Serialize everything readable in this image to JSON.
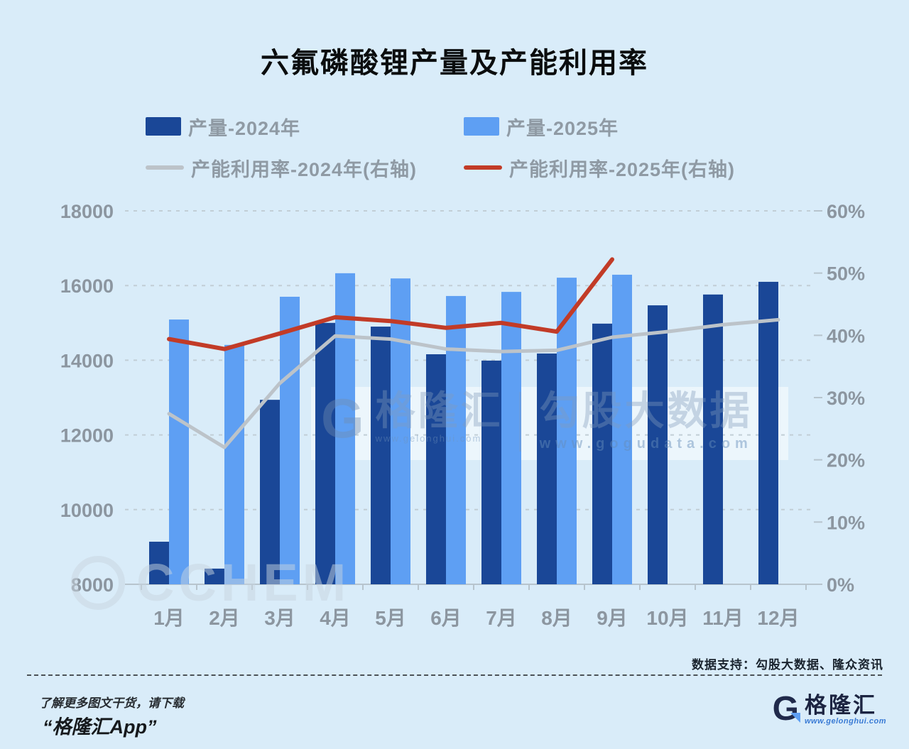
{
  "page": {
    "bg": "#d9ecf9",
    "title": "六氟磷酸锂产量及产能利用率",
    "source_note": "数据支持：勾股大数据、隆众资讯",
    "footer": {
      "line1": "了解更多图文干货，请下载",
      "line2": "“格隆汇App”",
      "logo_letter": "G",
      "brand": "格隆汇",
      "brand_url": "www.gelonghui.com"
    },
    "watermark": {
      "logo_letter": "G",
      "brand": "格隆汇",
      "brand_url": "www.gelonghui.com",
      "data_brand": "勾股大数据",
      "data_url": "www.gogudata.com",
      "corner": "CCHEM"
    }
  },
  "chart_data": {
    "type": "bar+line",
    "title": "六氟磷酸锂产量及产能利用率",
    "categories": [
      "1月",
      "2月",
      "3月",
      "4月",
      "5月",
      "6月",
      "7月",
      "8月",
      "9月",
      "10月",
      "11月",
      "12月"
    ],
    "left_axis": {
      "min": 8000,
      "max": 18000,
      "ticks": [
        18000,
        16000,
        14000,
        12000,
        10000,
        8000
      ]
    },
    "right_axis": {
      "min": 0,
      "max": 60,
      "ticks": [
        60,
        50,
        40,
        30,
        20,
        10,
        0
      ],
      "suffix": "%"
    },
    "grid": "dashed-horizontal",
    "legend_position": "top",
    "series": [
      {
        "name": "产量-2024年",
        "type": "bar",
        "axis": "left",
        "color": "#1a4797",
        "values": [
          9140,
          8420,
          12940,
          15000,
          14900,
          14160,
          13990,
          14180,
          14980,
          15470,
          15760,
          16100
        ]
      },
      {
        "name": "产量-2025年",
        "type": "bar",
        "axis": "left",
        "color": "#5e9ff3",
        "values": [
          15090,
          14410,
          15700,
          16330,
          16190,
          15720,
          15830,
          16210,
          16290,
          null,
          null,
          null
        ]
      },
      {
        "name": "产能利用率-2024年(右轴)",
        "type": "line",
        "axis": "right",
        "color": "#bcc3c9",
        "values": [
          27.4,
          22.0,
          32.3,
          39.9,
          39.4,
          37.8,
          37.4,
          37.6,
          39.7,
          40.6,
          41.7,
          42.5
        ]
      },
      {
        "name": "产能利用率-2025年(右轴)",
        "type": "line",
        "axis": "right",
        "color": "#c23b27",
        "values": [
          39.4,
          37.8,
          40.3,
          42.9,
          42.3,
          41.2,
          42.0,
          40.6,
          52.2,
          null,
          null,
          null
        ]
      }
    ]
  }
}
